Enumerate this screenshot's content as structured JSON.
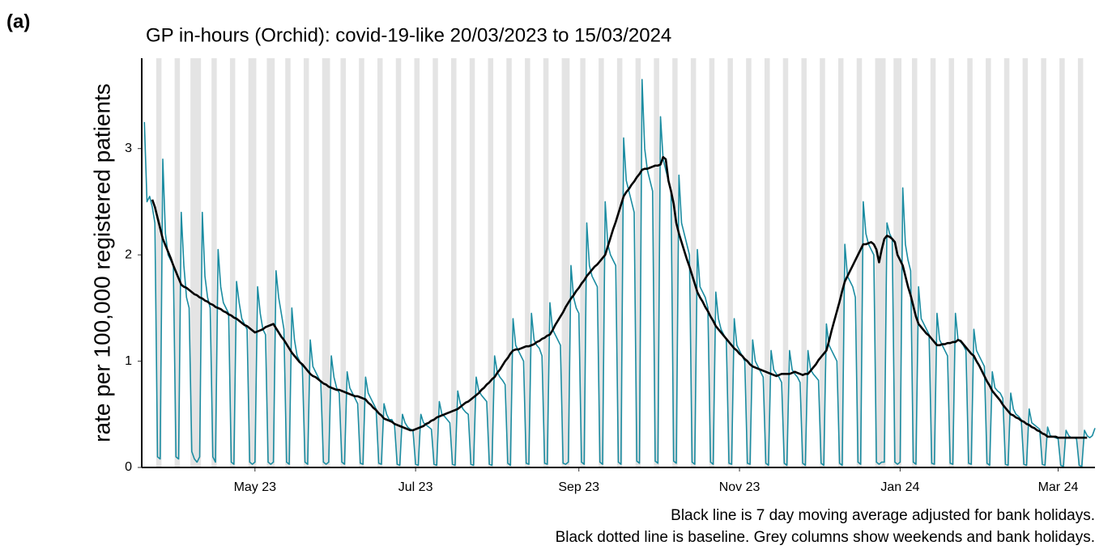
{
  "chart_data": {
    "type": "line",
    "panel_label": "(a)",
    "title": "GP in-hours (Orchid): covid-19-like 20/03/2023 to 15/03/2024",
    "y_label": "rate per 100,000 registered patients",
    "notes": [
      "Black line is 7 day moving average adjusted for bank holidays.",
      "Black dotted line is baseline. Grey columns show weekends and bank holidays."
    ],
    "xlim": [
      -1,
      361
    ],
    "ylim": [
      0,
      3.85
    ],
    "yticks": [
      0,
      1,
      2,
      3
    ],
    "xticks": [
      {
        "value": 42,
        "label": "May 23"
      },
      {
        "value": 103,
        "label": "Jul 23"
      },
      {
        "value": 165,
        "label": "Sep 23"
      },
      {
        "value": 226,
        "label": "Nov 23"
      },
      {
        "value": 287,
        "label": "Jan 24"
      },
      {
        "value": 347,
        "label": "Mar 24"
      }
    ],
    "shade_color": "#e4e4e4",
    "shaded_periods": [
      [
        5,
        7
      ],
      [
        12,
        14
      ],
      [
        18,
        22
      ],
      [
        26,
        28
      ],
      [
        33,
        35
      ],
      [
        40,
        43
      ],
      [
        47,
        50
      ],
      [
        54,
        56
      ],
      [
        61,
        63
      ],
      [
        68,
        71
      ],
      [
        75,
        77
      ],
      [
        82,
        84
      ],
      [
        89,
        91
      ],
      [
        96,
        98
      ],
      [
        103,
        105
      ],
      [
        110,
        112
      ],
      [
        117,
        119
      ],
      [
        124,
        126
      ],
      [
        131,
        133
      ],
      [
        138,
        140
      ],
      [
        145,
        147
      ],
      [
        152,
        154
      ],
      [
        159,
        162
      ],
      [
        166,
        168
      ],
      [
        173,
        175
      ],
      [
        180,
        182
      ],
      [
        187,
        189
      ],
      [
        194,
        196
      ],
      [
        201,
        203
      ],
      [
        208,
        210
      ],
      [
        215,
        217
      ],
      [
        222,
        224
      ],
      [
        229,
        231
      ],
      [
        236,
        238
      ],
      [
        243,
        245
      ],
      [
        250,
        252
      ],
      [
        257,
        259
      ],
      [
        264,
        266
      ],
      [
        271,
        273
      ],
      [
        278,
        282
      ],
      [
        285,
        288
      ],
      [
        292,
        294
      ],
      [
        299,
        301
      ],
      [
        306,
        308
      ],
      [
        313,
        315
      ],
      [
        320,
        322
      ],
      [
        327,
        329
      ],
      [
        334,
        336
      ],
      [
        341,
        343
      ],
      [
        348,
        350
      ],
      [
        355,
        357
      ]
    ],
    "x": [
      0,
      1,
      2,
      3,
      4,
      5,
      6,
      7,
      8,
      9,
      10,
      11,
      12,
      13,
      14,
      15,
      16,
      17,
      18,
      19,
      20,
      21,
      22,
      23,
      24,
      25,
      26,
      27,
      28,
      29,
      30,
      31,
      32,
      33,
      34,
      35,
      36,
      37,
      38,
      39,
      40,
      41,
      42,
      43,
      44,
      45,
      46,
      47,
      48,
      49,
      50,
      51,
      52,
      53,
      54,
      55,
      56,
      57,
      58,
      59,
      60,
      61,
      62,
      63,
      64,
      65,
      66,
      67,
      68,
      69,
      70,
      71,
      72,
      73,
      74,
      75,
      76,
      77,
      78,
      79,
      80,
      81,
      82,
      83,
      84,
      85,
      86,
      87,
      88,
      89,
      90,
      91,
      92,
      93,
      94,
      95,
      96,
      97,
      98,
      99,
      100,
      101,
      102,
      103,
      104,
      105,
      106,
      107,
      108,
      109,
      110,
      111,
      112,
      113,
      114,
      115,
      116,
      117,
      118,
      119,
      120,
      121,
      122,
      123,
      124,
      125,
      126,
      127,
      128,
      129,
      130,
      131,
      132,
      133,
      134,
      135,
      136,
      137,
      138,
      139,
      140,
      141,
      142,
      143,
      144,
      145,
      146,
      147,
      148,
      149,
      150,
      151,
      152,
      153,
      154,
      155,
      156,
      157,
      158,
      159,
      160,
      161,
      162,
      163,
      164,
      165,
      166,
      167,
      168,
      169,
      170,
      171,
      172,
      173,
      174,
      175,
      176,
      177,
      178,
      179,
      180,
      181,
      182,
      183,
      184,
      185,
      186,
      187,
      188,
      189,
      190,
      191,
      192,
      193,
      194,
      195,
      196,
      197,
      198,
      199,
      200,
      201,
      202,
      203,
      204,
      205,
      206,
      207,
      208,
      209,
      210,
      211,
      212,
      213,
      214,
      215,
      216,
      217,
      218,
      219,
      220,
      221,
      222,
      223,
      224,
      225,
      226,
      227,
      228,
      229,
      230,
      231,
      232,
      233,
      234,
      235,
      236,
      237,
      238,
      239,
      240,
      241,
      242,
      243,
      244,
      245,
      246,
      247,
      248,
      249,
      250,
      251,
      252,
      253,
      254,
      255,
      256,
      257,
      258,
      259,
      260,
      261,
      262,
      263,
      264,
      265,
      266,
      267,
      268,
      269,
      270,
      271,
      272,
      273,
      274,
      275,
      276,
      277,
      278,
      279,
      280,
      281,
      282,
      283,
      284,
      285,
      286,
      287,
      288,
      289,
      290,
      291,
      292,
      293,
      294,
      295,
      296,
      297,
      298,
      299,
      300,
      301,
      302,
      303,
      304,
      305,
      306,
      307,
      308,
      309,
      310,
      311,
      312,
      313,
      314,
      315,
      316,
      317,
      318,
      319,
      320,
      321,
      322,
      323,
      324,
      325,
      326,
      327,
      328,
      329,
      330,
      331,
      332,
      333,
      334,
      335,
      336,
      337,
      338,
      339,
      340,
      341,
      342,
      343,
      344,
      345,
      346,
      347,
      348,
      349,
      350,
      351,
      352,
      353,
      354,
      355,
      356,
      357,
      358,
      359,
      360,
      361
    ],
    "series": [
      {
        "color": "#1b8ca1",
        "width": 1.6,
        "values": [
          3.25,
          2.5,
          2.55,
          2.45,
          2.3,
          0.1,
          0.08,
          2.9,
          2.2,
          2.0,
          1.95,
          1.9,
          0.1,
          0.08,
          2.4,
          1.9,
          1.6,
          1.5,
          0.15,
          0.08,
          0.05,
          0.1,
          2.4,
          1.8,
          1.6,
          1.5,
          0.1,
          0.05,
          2.05,
          1.7,
          1.55,
          1.5,
          1.45,
          0.05,
          0.03,
          1.75,
          1.55,
          1.4,
          1.35,
          1.3,
          0.05,
          0.03,
          0.05,
          1.7,
          1.45,
          1.3,
          1.25,
          0.05,
          0.03,
          0.05,
          1.85,
          1.6,
          1.45,
          1.3,
          0.05,
          0.03,
          1.5,
          1.2,
          1.05,
          1.0,
          0.95,
          0.05,
          0.03,
          1.2,
          0.95,
          0.9,
          0.85,
          0.8,
          0.05,
          0.03,
          0.05,
          1.05,
          0.85,
          0.75,
          0.7,
          0.05,
          0.03,
          0.9,
          0.75,
          0.7,
          0.65,
          0.6,
          0.04,
          0.03,
          0.85,
          0.7,
          0.65,
          0.6,
          0.55,
          0.04,
          0.03,
          0.6,
          0.5,
          0.45,
          0.45,
          0.4,
          0.03,
          0.02,
          0.5,
          0.42,
          0.38,
          0.36,
          0.35,
          0.03,
          0.02,
          0.5,
          0.42,
          0.4,
          0.38,
          0.36,
          0.03,
          0.02,
          0.62,
          0.5,
          0.48,
          0.45,
          0.42,
          0.03,
          0.02,
          0.72,
          0.6,
          0.55,
          0.52,
          0.5,
          0.03,
          0.02,
          0.85,
          0.72,
          0.68,
          0.65,
          0.62,
          0.03,
          0.02,
          1.05,
          0.9,
          0.85,
          0.82,
          0.78,
          0.04,
          0.02,
          1.4,
          1.15,
          1.1,
          1.05,
          1.0,
          0.04,
          0.03,
          1.45,
          1.2,
          1.15,
          1.12,
          1.05,
          0.04,
          0.03,
          1.55,
          1.3,
          1.25,
          1.2,
          1.15,
          0.04,
          0.03,
          0.05,
          1.9,
          1.6,
          1.5,
          1.45,
          0.05,
          0.03,
          2.3,
          1.9,
          1.8,
          1.75,
          1.7,
          0.05,
          0.03,
          2.5,
          2.1,
          2.0,
          1.95,
          1.9,
          0.05,
          0.03,
          3.1,
          2.7,
          2.6,
          2.5,
          2.4,
          0.06,
          0.04,
          3.65,
          3.0,
          2.8,
          2.7,
          2.6,
          0.06,
          0.04,
          3.3,
          2.9,
          2.8,
          2.7,
          2.6,
          0.06,
          0.04,
          2.75,
          2.3,
          2.2,
          2.1,
          2.0,
          0.05,
          0.03,
          2.05,
          1.7,
          1.65,
          1.6,
          1.5,
          0.05,
          0.03,
          1.65,
          1.4,
          1.3,
          1.25,
          1.2,
          0.04,
          0.03,
          1.4,
          1.15,
          1.1,
          1.05,
          1.0,
          0.04,
          0.03,
          1.2,
          1.0,
          0.95,
          0.9,
          0.85,
          0.04,
          0.02,
          1.1,
          0.92,
          0.88,
          0.85,
          0.8,
          0.04,
          0.02,
          1.1,
          0.92,
          0.88,
          0.85,
          0.8,
          0.04,
          0.02,
          1.1,
          0.92,
          0.88,
          0.85,
          0.82,
          0.04,
          0.02,
          1.35,
          1.15,
          1.1,
          1.05,
          1.0,
          0.04,
          0.02,
          2.1,
          1.8,
          1.75,
          1.7,
          1.6,
          0.05,
          0.03,
          2.5,
          2.2,
          2.1,
          2.05,
          2.0,
          0.05,
          0.03,
          0.05,
          0.05,
          2.3,
          2.2,
          2.15,
          0.05,
          0.03,
          0.05,
          2.63,
          2.1,
          1.95,
          1.85,
          0.05,
          0.03,
          1.7,
          1.4,
          1.35,
          1.3,
          1.25,
          0.04,
          0.03,
          1.45,
          1.2,
          1.15,
          1.1,
          1.05,
          0.04,
          0.03,
          1.45,
          1.2,
          1.18,
          1.15,
          1.1,
          0.04,
          0.03,
          1.3,
          1.1,
          1.05,
          1.0,
          0.95,
          0.04,
          0.02,
          0.9,
          0.75,
          0.72,
          0.7,
          0.65,
          0.03,
          0.02,
          0.7,
          0.55,
          0.5,
          0.48,
          0.45,
          0.03,
          0.02,
          0.55,
          0.42,
          0.4,
          0.38,
          0.36,
          0.03,
          0.02,
          0.38,
          0.3,
          0.29,
          0.28,
          0.27,
          0.02,
          0.01,
          0.35,
          0.3,
          0.28,
          0.28,
          0.27,
          0.02,
          0.01,
          0.35,
          0.3,
          0.28,
          0.3,
          0.37
        ]
      },
      {
        "color": "#000000",
        "width": 2.6,
        "values": [
          null,
          null,
          null,
          2.52,
          2.45,
          2.35,
          2.25,
          2.15,
          2.09,
          2.03,
          1.97,
          1.9,
          1.84,
          1.78,
          1.72,
          1.7,
          1.69,
          1.67,
          1.65,
          1.63,
          1.62,
          1.6,
          1.59,
          1.57,
          1.56,
          1.54,
          1.53,
          1.51,
          1.5,
          1.49,
          1.47,
          1.46,
          1.44,
          1.43,
          1.41,
          1.4,
          1.38,
          1.36,
          1.34,
          1.33,
          1.31,
          1.29,
          1.27,
          1.28,
          1.29,
          1.3,
          1.32,
          1.33,
          1.34,
          1.35,
          1.31,
          1.27,
          1.23,
          1.2,
          1.16,
          1.12,
          1.08,
          1.05,
          1.02,
          0.99,
          0.97,
          0.94,
          0.91,
          0.88,
          0.86,
          0.85,
          0.83,
          0.81,
          0.79,
          0.78,
          0.76,
          0.75,
          0.74,
          0.73,
          0.73,
          0.72,
          0.71,
          0.7,
          0.69,
          0.68,
          0.67,
          0.67,
          0.66,
          0.65,
          0.64,
          0.61,
          0.59,
          0.56,
          0.54,
          0.51,
          0.49,
          0.46,
          0.45,
          0.44,
          0.43,
          0.41,
          0.4,
          0.39,
          0.38,
          0.37,
          0.36,
          0.35,
          0.35,
          0.36,
          0.37,
          0.38,
          0.39,
          0.41,
          0.42,
          0.44,
          0.45,
          0.47,
          0.48,
          0.49,
          0.5,
          0.51,
          0.52,
          0.53,
          0.54,
          0.55,
          0.57,
          0.59,
          0.61,
          0.62,
          0.64,
          0.66,
          0.68,
          0.7,
          0.73,
          0.75,
          0.78,
          0.8,
          0.83,
          0.85,
          0.89,
          0.92,
          0.96,
          1.0,
          1.03,
          1.07,
          1.1,
          1.11,
          1.11,
          1.12,
          1.13,
          1.14,
          1.14,
          1.15,
          1.16,
          1.18,
          1.19,
          1.21,
          1.22,
          1.24,
          1.25,
          1.29,
          1.34,
          1.38,
          1.42,
          1.46,
          1.51,
          1.55,
          1.59,
          1.62,
          1.66,
          1.69,
          1.73,
          1.76,
          1.8,
          1.83,
          1.86,
          1.89,
          1.91,
          1.94,
          1.97,
          2.0,
          2.08,
          2.16,
          2.24,
          2.31,
          2.39,
          2.47,
          2.55,
          2.59,
          2.62,
          2.66,
          2.69,
          2.73,
          2.76,
          2.8,
          2.81,
          2.81,
          2.82,
          2.83,
          2.84,
          2.84,
          2.85,
          2.92,
          2.9,
          2.7,
          2.6,
          2.48,
          2.3,
          2.2,
          2.12,
          2.04,
          1.96,
          1.89,
          1.81,
          1.73,
          1.65,
          1.6,
          1.56,
          1.51,
          1.47,
          1.42,
          1.38,
          1.33,
          1.3,
          1.27,
          1.24,
          1.21,
          1.18,
          1.15,
          1.12,
          1.1,
          1.07,
          1.05,
          1.02,
          1.0,
          0.97,
          0.95,
          0.94,
          0.93,
          0.92,
          0.91,
          0.9,
          0.89,
          0.88,
          0.87,
          0.86,
          0.87,
          0.88,
          0.88,
          0.88,
          0.88,
          0.89,
          0.9,
          0.89,
          0.88,
          0.87,
          0.88,
          0.88,
          0.91,
          0.94,
          0.97,
          1.01,
          1.04,
          1.07,
          1.1,
          1.19,
          1.29,
          1.38,
          1.47,
          1.56,
          1.66,
          1.75,
          1.8,
          1.85,
          1.9,
          1.95,
          2.0,
          2.05,
          2.1,
          2.1,
          2.11,
          2.12,
          2.1,
          2.05,
          1.93,
          2.05,
          2.15,
          2.18,
          2.17,
          2.15,
          2.12,
          2.0,
          1.95,
          1.9,
          1.8,
          1.7,
          1.62,
          1.52,
          1.42,
          1.35,
          1.32,
          1.29,
          1.26,
          1.24,
          1.21,
          1.18,
          1.15,
          1.15,
          1.16,
          1.16,
          1.17,
          1.17,
          1.18,
          1.18,
          1.2,
          1.19,
          1.16,
          1.13,
          1.1,
          1.07,
          1.05,
          1.0,
          0.96,
          0.91,
          0.86,
          0.81,
          0.77,
          0.72,
          0.69,
          0.66,
          0.63,
          0.59,
          0.56,
          0.53,
          0.5,
          0.49,
          0.47,
          0.46,
          0.44,
          0.43,
          0.41,
          0.4,
          0.38,
          0.37,
          0.35,
          0.34,
          0.32,
          0.31,
          0.29,
          0.29,
          0.29,
          0.29,
          0.28,
          0.28,
          0.28,
          0.28,
          0.28,
          0.28,
          0.28,
          0.28,
          0.28,
          0.28,
          0.28,
          0.28,
          null,
          null,
          null
        ]
      }
    ]
  }
}
